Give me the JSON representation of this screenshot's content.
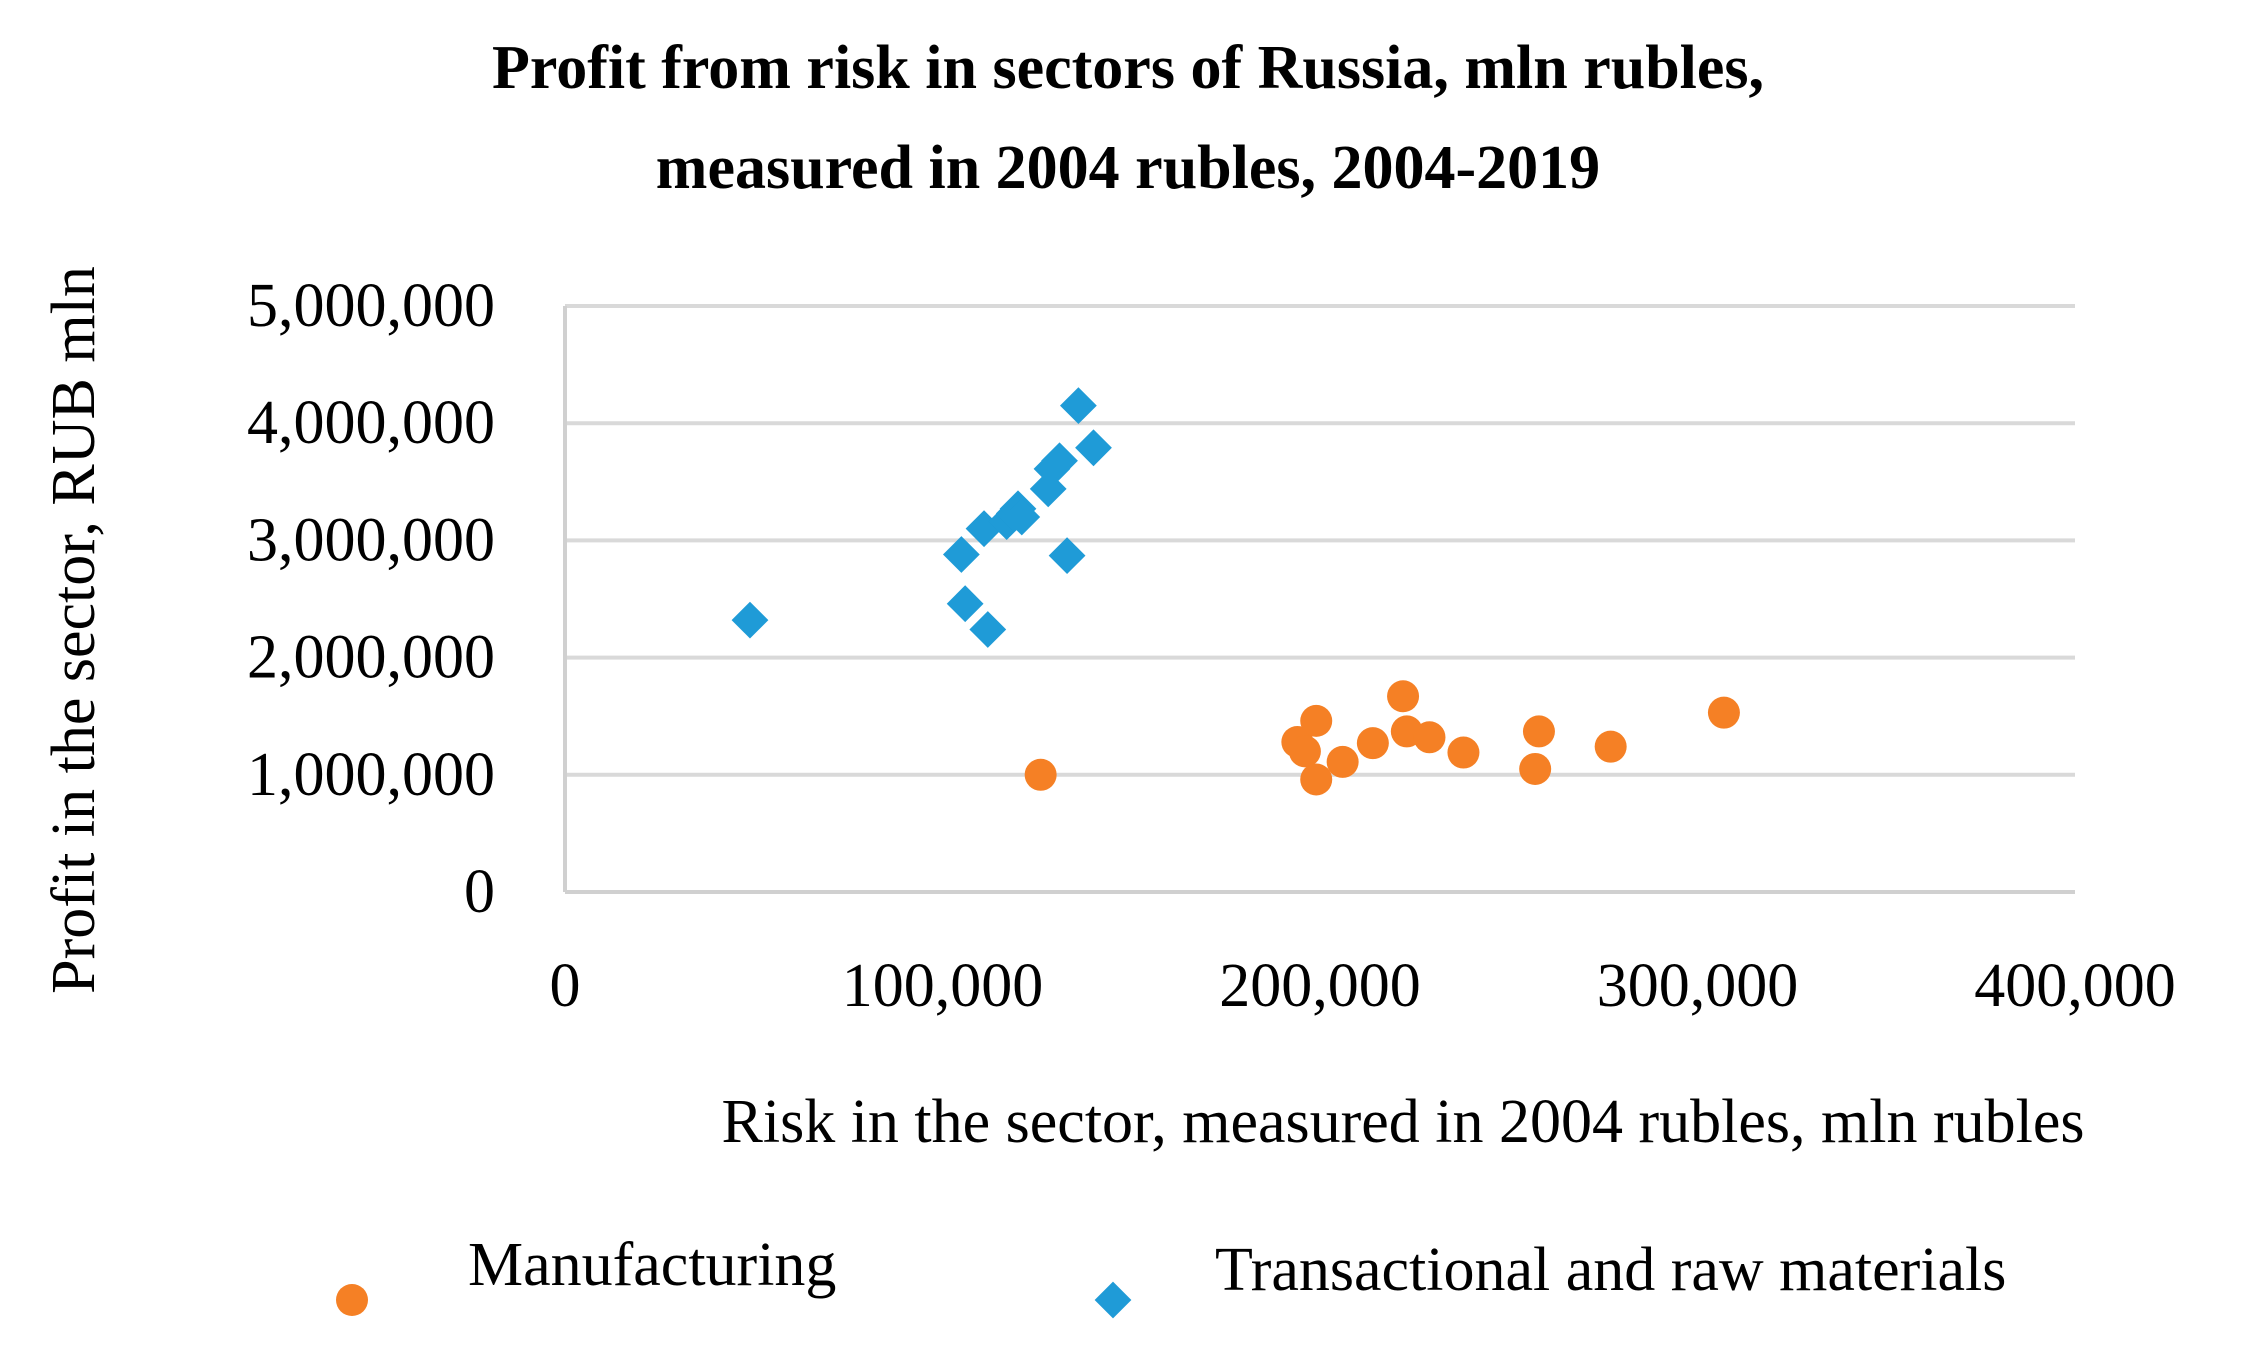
{
  "chart_data": {
    "type": "scatter",
    "title": [
      "Profit from risk in sectors of Russia, mln rubles,",
      "measured in 2004 rubles, 2004-2019"
    ],
    "xlabel": "Risk in the sector, measured in 2004 rubles, mln rubles",
    "ylabel": "Profit in the sector, RUB mln",
    "xlim": [
      0,
      400000
    ],
    "ylim": [
      0,
      5000000
    ],
    "xticks": [
      0,
      100000,
      200000,
      300000,
      400000
    ],
    "xtick_labels": [
      "0",
      "100,000",
      "200,000",
      "300,000",
      "400,000"
    ],
    "yticks": [
      0,
      1000000,
      2000000,
      3000000,
      4000000,
      5000000
    ],
    "ytick_labels": [
      "0",
      "1,000,000",
      "2,000,000",
      "3,000,000",
      "4,000,000",
      "5,000,000"
    ],
    "grid": "horizontal",
    "legend_position": "bottom",
    "series": [
      {
        "name": "Manufacturing",
        "marker": "circle",
        "color": "#F58025",
        "points": [
          {
            "x": 126000,
            "y": 1000000
          },
          {
            "x": 194000,
            "y": 1280000
          },
          {
            "x": 196000,
            "y": 1200000
          },
          {
            "x": 199000,
            "y": 1460000
          },
          {
            "x": 199000,
            "y": 960000
          },
          {
            "x": 206000,
            "y": 1110000
          },
          {
            "x": 214000,
            "y": 1270000
          },
          {
            "x": 222000,
            "y": 1670000
          },
          {
            "x": 223000,
            "y": 1370000
          },
          {
            "x": 229000,
            "y": 1320000
          },
          {
            "x": 238000,
            "y": 1190000
          },
          {
            "x": 257000,
            "y": 1050000
          },
          {
            "x": 258000,
            "y": 1370000
          },
          {
            "x": 277000,
            "y": 1240000
          },
          {
            "x": 307000,
            "y": 1530000
          }
        ]
      },
      {
        "name": "Transactional and raw materials",
        "marker": "diamond",
        "color": "#1F9BD7",
        "points": [
          {
            "x": 49000,
            "y": 2320000
          },
          {
            "x": 105000,
            "y": 2880000
          },
          {
            "x": 106000,
            "y": 2460000
          },
          {
            "x": 111000,
            "y": 3100000
          },
          {
            "x": 112000,
            "y": 2240000
          },
          {
            "x": 117000,
            "y": 3160000
          },
          {
            "x": 119000,
            "y": 3230000
          },
          {
            "x": 120000,
            "y": 3270000
          },
          {
            "x": 121000,
            "y": 3200000
          },
          {
            "x": 128000,
            "y": 3440000
          },
          {
            "x": 129000,
            "y": 3610000
          },
          {
            "x": 131000,
            "y": 3680000
          },
          {
            "x": 133000,
            "y": 2870000
          },
          {
            "x": 136000,
            "y": 4150000
          },
          {
            "x": 140000,
            "y": 3790000
          }
        ]
      }
    ]
  }
}
